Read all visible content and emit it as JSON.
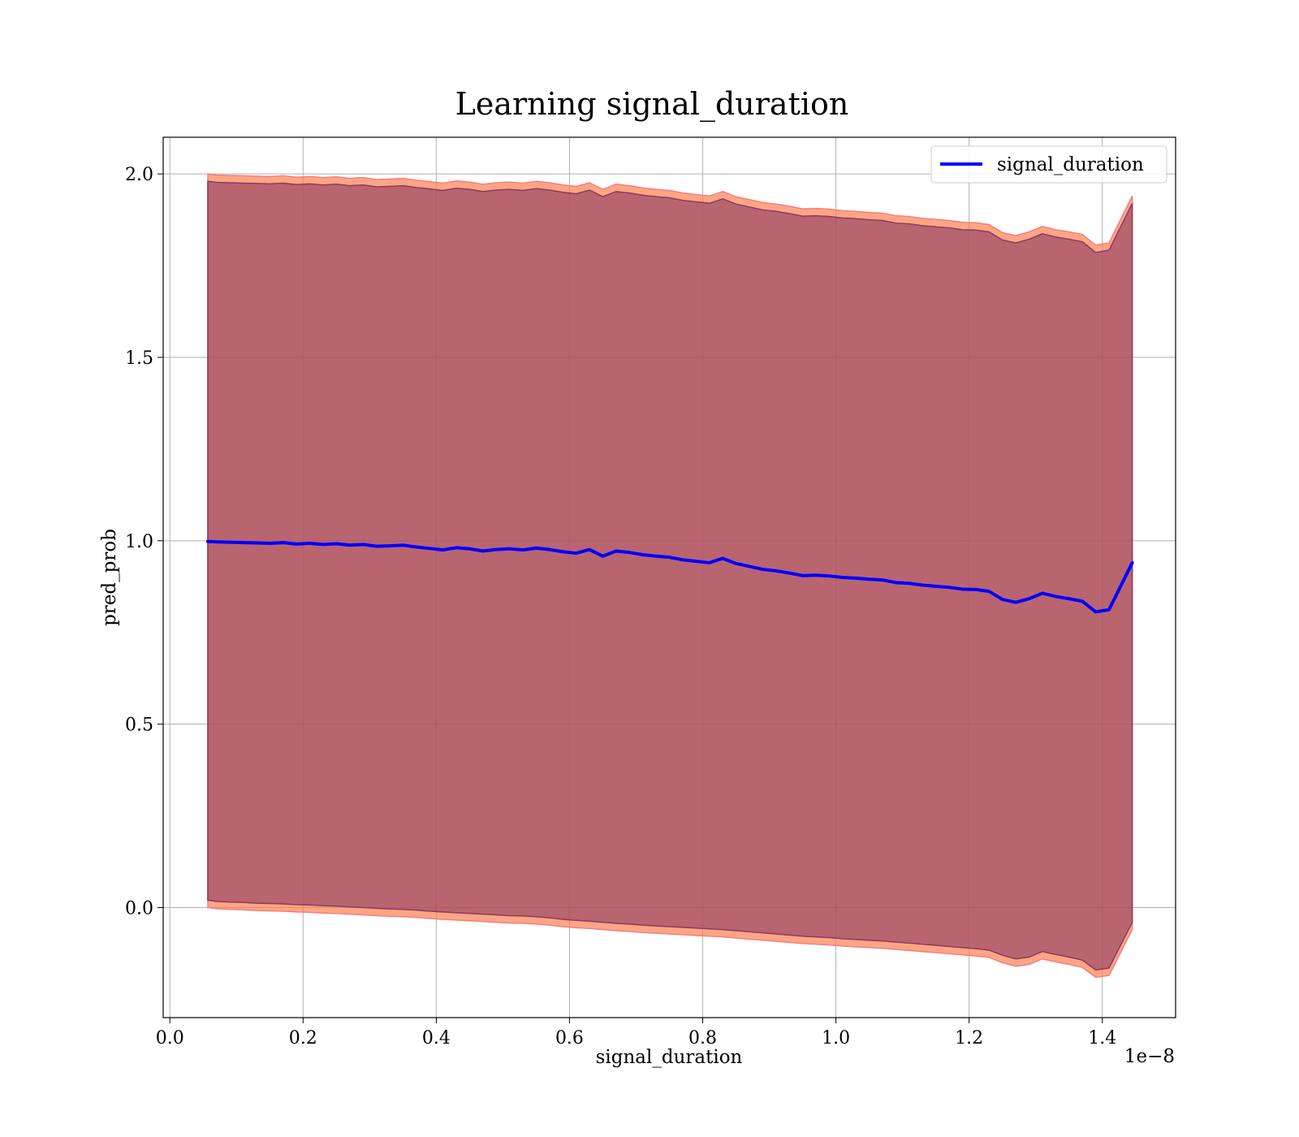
{
  "chart_data": {
    "type": "line",
    "title": "Learning signal_duration",
    "xlabel": "signal_duration",
    "ylabel": "pred_prob",
    "x_offset_label": "1e−8",
    "xlim": [
      -0.01,
      1.51
    ],
    "ylim": [
      -0.3,
      2.1
    ],
    "xticks": [
      0.0,
      0.2,
      0.4,
      0.6,
      0.8,
      1.0,
      1.2,
      1.4
    ],
    "xtick_labels": [
      "0.0",
      "0.2",
      "0.4",
      "0.6",
      "0.8",
      "1.0",
      "1.2",
      "1.4"
    ],
    "yticks": [
      0.0,
      0.5,
      1.0,
      1.5,
      2.0
    ],
    "ytick_labels": [
      "0.0",
      "0.5",
      "1.0",
      "1.5",
      "2.0"
    ],
    "grid": true,
    "legend_position": "top-right",
    "series": [
      {
        "name": "signal_duration",
        "color": "#0000ff",
        "x": [
          0.057,
          0.07,
          0.09,
          0.11,
          0.13,
          0.15,
          0.17,
          0.19,
          0.21,
          0.23,
          0.25,
          0.27,
          0.29,
          0.31,
          0.33,
          0.35,
          0.37,
          0.39,
          0.41,
          0.43,
          0.45,
          0.47,
          0.49,
          0.51,
          0.53,
          0.55,
          0.57,
          0.59,
          0.61,
          0.63,
          0.65,
          0.67,
          0.69,
          0.71,
          0.73,
          0.75,
          0.77,
          0.79,
          0.81,
          0.83,
          0.85,
          0.87,
          0.89,
          0.91,
          0.93,
          0.95,
          0.97,
          0.99,
          1.01,
          1.03,
          1.05,
          1.07,
          1.09,
          1.11,
          1.13,
          1.15,
          1.17,
          1.19,
          1.21,
          1.23,
          1.25,
          1.27,
          1.29,
          1.31,
          1.33,
          1.35,
          1.37,
          1.39,
          1.41,
          1.445
        ],
        "y": [
          0.998,
          0.997,
          0.996,
          0.995,
          0.994,
          0.993,
          0.995,
          0.991,
          0.993,
          0.99,
          0.992,
          0.988,
          0.99,
          0.985,
          0.986,
          0.988,
          0.983,
          0.979,
          0.975,
          0.981,
          0.978,
          0.972,
          0.976,
          0.978,
          0.975,
          0.98,
          0.976,
          0.97,
          0.966,
          0.976,
          0.958,
          0.972,
          0.968,
          0.962,
          0.958,
          0.955,
          0.948,
          0.944,
          0.94,
          0.952,
          0.938,
          0.93,
          0.922,
          0.918,
          0.912,
          0.905,
          0.906,
          0.904,
          0.9,
          0.898,
          0.895,
          0.893,
          0.886,
          0.884,
          0.879,
          0.876,
          0.873,
          0.868,
          0.867,
          0.862,
          0.84,
          0.832,
          0.842,
          0.857,
          0.848,
          0.842,
          0.835,
          0.806,
          0.812,
          0.94
        ]
      }
    ],
    "bands": [
      {
        "color": "#ff7f50",
        "edge_color": "#f08080",
        "x": [
          0.057,
          0.07,
          0.09,
          0.11,
          0.13,
          0.15,
          0.17,
          0.19,
          0.21,
          0.23,
          0.25,
          0.27,
          0.29,
          0.31,
          0.33,
          0.35,
          0.37,
          0.39,
          0.41,
          0.43,
          0.45,
          0.47,
          0.49,
          0.51,
          0.53,
          0.55,
          0.57,
          0.59,
          0.61,
          0.63,
          0.65,
          0.67,
          0.69,
          0.71,
          0.73,
          0.75,
          0.77,
          0.79,
          0.81,
          0.83,
          0.85,
          0.87,
          0.89,
          0.91,
          0.93,
          0.95,
          0.97,
          0.99,
          1.01,
          1.03,
          1.05,
          1.07,
          1.09,
          1.11,
          1.13,
          1.15,
          1.17,
          1.19,
          1.21,
          1.23,
          1.25,
          1.27,
          1.29,
          1.31,
          1.33,
          1.35,
          1.37,
          1.39,
          1.41,
          1.445
        ],
        "lower": [
          0.0,
          -0.003,
          -0.005,
          -0.006,
          -0.008,
          -0.009,
          -0.01,
          -0.012,
          -0.013,
          -0.015,
          -0.016,
          -0.018,
          -0.02,
          -0.022,
          -0.024,
          -0.025,
          -0.027,
          -0.03,
          -0.032,
          -0.034,
          -0.036,
          -0.038,
          -0.04,
          -0.042,
          -0.043,
          -0.045,
          -0.048,
          -0.052,
          -0.055,
          -0.057,
          -0.06,
          -0.063,
          -0.065,
          -0.068,
          -0.07,
          -0.072,
          -0.074,
          -0.076,
          -0.078,
          -0.08,
          -0.083,
          -0.086,
          -0.089,
          -0.092,
          -0.095,
          -0.098,
          -0.1,
          -0.102,
          -0.105,
          -0.107,
          -0.109,
          -0.111,
          -0.114,
          -0.117,
          -0.12,
          -0.123,
          -0.126,
          -0.129,
          -0.132,
          -0.136,
          -0.15,
          -0.16,
          -0.155,
          -0.14,
          -0.148,
          -0.155,
          -0.163,
          -0.19,
          -0.185,
          -0.06
        ],
        "upper": [
          2.0,
          1.997,
          1.996,
          1.995,
          1.994,
          1.993,
          1.995,
          1.991,
          1.993,
          1.99,
          1.992,
          1.988,
          1.99,
          1.985,
          1.986,
          1.988,
          1.983,
          1.979,
          1.975,
          1.981,
          1.978,
          1.972,
          1.976,
          1.978,
          1.975,
          1.98,
          1.976,
          1.97,
          1.966,
          1.976,
          1.958,
          1.972,
          1.968,
          1.962,
          1.958,
          1.955,
          1.948,
          1.944,
          1.94,
          1.952,
          1.938,
          1.93,
          1.922,
          1.918,
          1.912,
          1.905,
          1.906,
          1.904,
          1.9,
          1.898,
          1.895,
          1.893,
          1.886,
          1.884,
          1.879,
          1.876,
          1.873,
          1.868,
          1.867,
          1.862,
          1.84,
          1.832,
          1.842,
          1.857,
          1.848,
          1.842,
          1.835,
          1.806,
          1.812,
          1.94
        ]
      },
      {
        "color": "#8b3a62",
        "edge_color": "#8b3a62",
        "x": [
          0.057,
          0.07,
          0.09,
          0.11,
          0.13,
          0.15,
          0.17,
          0.19,
          0.21,
          0.23,
          0.25,
          0.27,
          0.29,
          0.31,
          0.33,
          0.35,
          0.37,
          0.39,
          0.41,
          0.43,
          0.45,
          0.47,
          0.49,
          0.51,
          0.53,
          0.55,
          0.57,
          0.59,
          0.61,
          0.63,
          0.65,
          0.67,
          0.69,
          0.71,
          0.73,
          0.75,
          0.77,
          0.79,
          0.81,
          0.83,
          0.85,
          0.87,
          0.89,
          0.91,
          0.93,
          0.95,
          0.97,
          0.99,
          1.01,
          1.03,
          1.05,
          1.07,
          1.09,
          1.11,
          1.13,
          1.15,
          1.17,
          1.19,
          1.21,
          1.23,
          1.25,
          1.27,
          1.29,
          1.31,
          1.33,
          1.35,
          1.37,
          1.39,
          1.41,
          1.445
        ],
        "lower": [
          0.02,
          0.017,
          0.015,
          0.014,
          0.012,
          0.011,
          0.01,
          0.008,
          0.007,
          0.005,
          0.004,
          0.002,
          0.0,
          -0.002,
          -0.004,
          -0.005,
          -0.007,
          -0.01,
          -0.012,
          -0.014,
          -0.016,
          -0.018,
          -0.02,
          -0.022,
          -0.023,
          -0.025,
          -0.028,
          -0.032,
          -0.035,
          -0.037,
          -0.04,
          -0.043,
          -0.045,
          -0.048,
          -0.05,
          -0.052,
          -0.054,
          -0.056,
          -0.058,
          -0.06,
          -0.063,
          -0.066,
          -0.069,
          -0.072,
          -0.075,
          -0.078,
          -0.08,
          -0.082,
          -0.085,
          -0.087,
          -0.089,
          -0.091,
          -0.094,
          -0.097,
          -0.1,
          -0.103,
          -0.106,
          -0.109,
          -0.112,
          -0.116,
          -0.13,
          -0.14,
          -0.135,
          -0.12,
          -0.128,
          -0.135,
          -0.143,
          -0.17,
          -0.165,
          -0.04
        ],
        "upper": [
          1.98,
          1.977,
          1.976,
          1.975,
          1.974,
          1.973,
          1.975,
          1.971,
          1.973,
          1.97,
          1.972,
          1.968,
          1.97,
          1.965,
          1.966,
          1.968,
          1.963,
          1.959,
          1.955,
          1.961,
          1.958,
          1.952,
          1.956,
          1.958,
          1.955,
          1.96,
          1.956,
          1.95,
          1.946,
          1.956,
          1.938,
          1.952,
          1.948,
          1.942,
          1.938,
          1.935,
          1.928,
          1.924,
          1.92,
          1.932,
          1.918,
          1.91,
          1.902,
          1.898,
          1.892,
          1.885,
          1.886,
          1.884,
          1.88,
          1.878,
          1.875,
          1.873,
          1.866,
          1.864,
          1.859,
          1.856,
          1.853,
          1.848,
          1.847,
          1.842,
          1.82,
          1.812,
          1.822,
          1.837,
          1.828,
          1.822,
          1.815,
          1.786,
          1.792,
          1.92
        ]
      }
    ]
  }
}
